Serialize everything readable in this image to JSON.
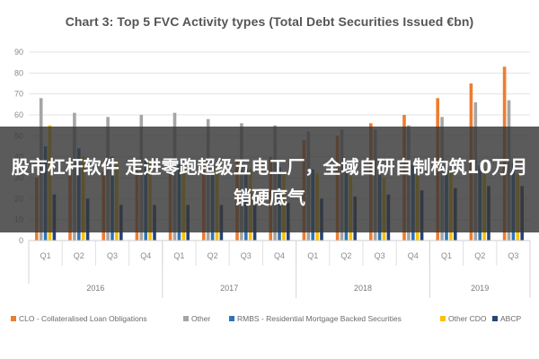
{
  "chart_data": {
    "type": "bar",
    "title": "Chart 3: Top 5 FVC Activity types (Total Debt Securities Issued €bn)",
    "xlabel": "",
    "ylabel": "",
    "ylim": [
      0,
      90
    ],
    "yticks": [
      0,
      10,
      20,
      30,
      40,
      50,
      60,
      70,
      80,
      90
    ],
    "grid": true,
    "legend_position": "bottom",
    "categories": [
      "Q1",
      "Q2",
      "Q3",
      "Q4",
      "Q1",
      "Q2",
      "Q3",
      "Q4",
      "Q1",
      "Q2",
      "Q3",
      "Q4",
      "Q1",
      "Q2",
      "Q3"
    ],
    "groups": [
      {
        "label": "2016",
        "start": 0,
        "count": 4
      },
      {
        "label": "2017",
        "start": 4,
        "count": 4
      },
      {
        "label": "2018",
        "start": 8,
        "count": 4
      },
      {
        "label": "2019",
        "start": 12,
        "count": 3
      }
    ],
    "series": [
      {
        "name": "CLO - Collateralised Loan Obligations",
        "color": "#ed7d31",
        "values": [
          30,
          32,
          33,
          35,
          35,
          36,
          38,
          40,
          48,
          50,
          56,
          60,
          68,
          75,
          83
        ]
      },
      {
        "name": "Other",
        "color": "#a5a5a5",
        "values": [
          68,
          61,
          59,
          60,
          61,
          58,
          56,
          55,
          52,
          53,
          53,
          55,
          59,
          66,
          67
        ]
      },
      {
        "name": "RMBS - Residential Mortgage Backed Securities",
        "color": "#2e75b6",
        "values": [
          45,
          44,
          40,
          38,
          37,
          36,
          36,
          35,
          34,
          34,
          35,
          36,
          35,
          36,
          37
        ]
      },
      {
        "name": "Other CDO",
        "color": "#ffc000",
        "values": [
          55,
          40,
          38,
          37,
          36,
          35,
          34,
          33,
          32,
          31,
          30,
          32,
          33,
          34,
          32
        ]
      },
      {
        "name": "ABCP",
        "color": "#264478",
        "values": [
          22,
          20,
          17,
          17,
          17,
          17,
          17,
          18,
          20,
          21,
          22,
          24,
          25,
          26,
          26
        ]
      }
    ]
  },
  "overlay": {
    "text": "股市杠杆软件 走进零跑超级五电工厂，全域自研自制构筑10万月销硬底气"
  }
}
